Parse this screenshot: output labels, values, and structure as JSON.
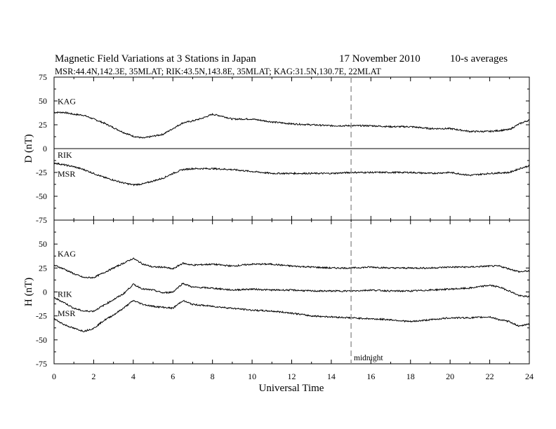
{
  "chart_data": {
    "type": "line",
    "title": "Magnetic Field Variations at 3 Stations in Japan",
    "date": "17 November 2010",
    "averaging": "10-s averages",
    "stations_line": "MSR:44.4N,142.3E, 35MLAT;  RIK:43.5N,143.8E, 35MLAT;  KAG:31.5N,130.7E, 22MLAT",
    "xlabel": "Universal Time",
    "xlim": [
      0,
      24
    ],
    "xticks": [
      "0",
      "2",
      "4",
      "6",
      "8",
      "10",
      "12",
      "14",
      "16",
      "18",
      "20",
      "22",
      "24"
    ],
    "midnight_x": 15,
    "midnight_label": "midnight",
    "panels": [
      {
        "ylabel": "D (nT)",
        "ylim": [
          -75,
          75
        ],
        "yticks": [
          "75",
          "50",
          "25",
          "0",
          "-25",
          "-50",
          "-75"
        ],
        "series": [
          {
            "name": "KAG",
            "x": [
              0,
              0.5,
              1,
              1.5,
              2,
              2.5,
              3,
              3.5,
              4,
              4.5,
              5,
              5.5,
              6,
              6.5,
              7,
              7.5,
              8,
              8.5,
              9,
              10,
              11,
              12,
              13,
              14,
              15,
              16,
              17,
              18,
              19,
              20,
              21,
              22,
              23,
              23.5,
              24
            ],
            "y": [
              38,
              38,
              36,
              35,
              31,
              27,
              22,
              17,
              13,
              11,
              13,
              15,
              21,
              27,
              29,
              32,
              36,
              34,
              31,
              31,
              28,
              26,
              25,
              24,
              24,
              24,
              23,
              23,
              21,
              21,
              18,
              18,
              20,
              26,
              30
            ]
          },
          {
            "name": "RIK",
            "x": [
              0,
              24
            ],
            "y": [
              0,
              0
            ]
          },
          {
            "name": "MSR",
            "x": [
              0,
              0.5,
              1,
              1.5,
              2,
              2.5,
              3,
              3.5,
              4,
              4.5,
              5,
              5.5,
              6,
              6.5,
              7,
              8,
              9,
              10,
              11,
              12,
              13,
              14,
              15,
              16,
              17,
              18,
              19,
              20,
              21,
              22,
              23,
              23.5,
              24
            ],
            "y": [
              -15,
              -17,
              -19,
              -22,
              -26,
              -30,
              -33,
              -36,
              -38,
              -37,
              -34,
              -31,
              -26,
              -22,
              -21,
              -21,
              -22,
              -24,
              -26,
              -26,
              -26,
              -26,
              -25,
              -25,
              -25,
              -25,
              -26,
              -25,
              -28,
              -26,
              -25,
              -21,
              -18
            ]
          }
        ]
      },
      {
        "ylabel": "H (nT)",
        "ylim": [
          -75,
          75
        ],
        "yticks": [
          "75",
          "50",
          "25",
          "0",
          "-25",
          "-50",
          "-75"
        ],
        "series": [
          {
            "name": "KAG",
            "x": [
              0,
              0.5,
              1,
              1.5,
              2,
              2.5,
              3,
              3.5,
              4,
              4.5,
              5,
              5.5,
              6,
              6.5,
              7,
              8,
              9,
              10,
              11,
              12,
              13,
              14,
              15,
              16,
              17,
              18,
              19,
              20,
              21,
              22,
              22.5,
              23,
              23.5,
              24
            ],
            "y": [
              28,
              24,
              19,
              15,
              15,
              20,
              25,
              30,
              35,
              29,
              26,
              26,
              24,
              30,
              28,
              29,
              27,
              29,
              29,
              27,
              26,
              25,
              25,
              26,
              25,
              25,
              25,
              26,
              26,
              27,
              27,
              24,
              21,
              22
            ]
          },
          {
            "name": "RIK",
            "x": [
              0,
              0.5,
              1,
              1.5,
              2,
              2.5,
              3,
              3.5,
              4,
              4.5,
              5,
              5.5,
              6,
              6.5,
              7,
              8,
              9,
              10,
              11,
              12,
              13,
              14,
              15,
              16,
              17,
              18,
              19,
              20,
              21,
              22,
              22.5,
              23,
              23.5,
              24
            ],
            "y": [
              -6,
              -11,
              -17,
              -20,
              -20,
              -14,
              -8,
              -2,
              8,
              3,
              2,
              -1,
              0,
              9,
              5,
              4,
              2,
              3,
              2,
              2,
              1,
              1,
              1,
              2,
              1,
              1,
              2,
              3,
              4,
              7,
              5,
              1,
              -4,
              -5
            ]
          },
          {
            "name": "MSR",
            "x": [
              0,
              0.5,
              1,
              1.5,
              2,
              2.5,
              3,
              3.5,
              4,
              4.5,
              5,
              5.5,
              6,
              6.5,
              7,
              8,
              9,
              10,
              11,
              12,
              13,
              14,
              15,
              16,
              17,
              18,
              19,
              20,
              21,
              22,
              22.5,
              23,
              23.5,
              24
            ],
            "y": [
              -28,
              -34,
              -38,
              -41,
              -38,
              -30,
              -24,
              -17,
              -9,
              -13,
              -15,
              -16,
              -17,
              -9,
              -13,
              -15,
              -17,
              -19,
              -20,
              -22,
              -25,
              -26,
              -27,
              -28,
              -29,
              -31,
              -29,
              -27,
              -27,
              -26,
              -29,
              -31,
              -36,
              -33
            ]
          }
        ]
      }
    ]
  }
}
